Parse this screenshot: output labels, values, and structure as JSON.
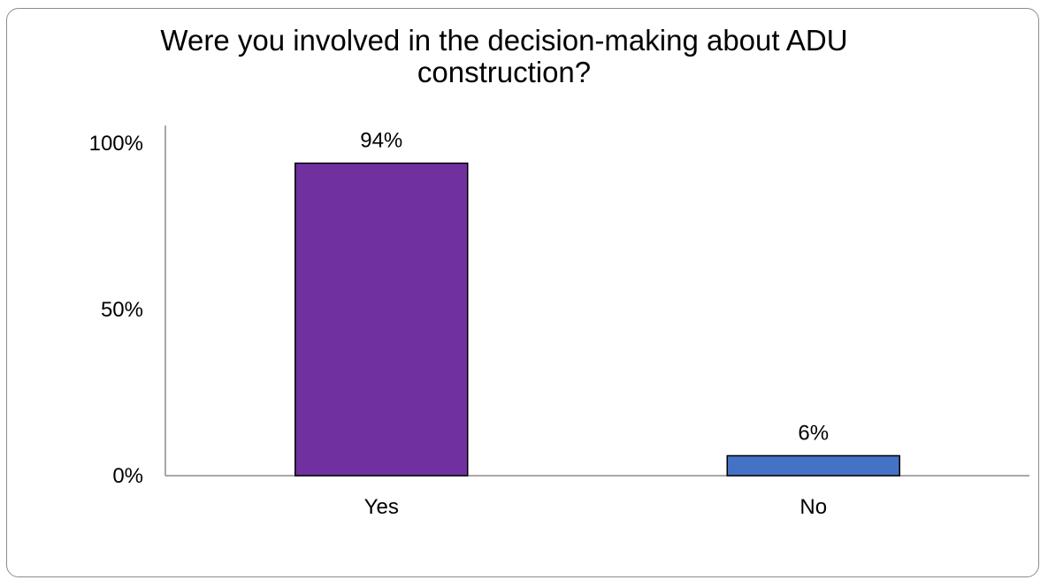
{
  "chart_data": {
    "type": "bar",
    "title": "Were you involved in the decision-making about ADU construction?",
    "categories": [
      "Yes",
      "No"
    ],
    "values": [
      94,
      6
    ],
    "data_labels": [
      "94%",
      "6%"
    ],
    "bar_colors": [
      "#7030a0",
      "#4472c4"
    ],
    "ylim": [
      0,
      100
    ],
    "yticks": [
      0,
      50,
      100
    ],
    "ytick_labels": [
      "0%",
      "50%",
      "100%"
    ],
    "grid": false,
    "legend": "none",
    "xlabel": "",
    "ylabel": ""
  }
}
